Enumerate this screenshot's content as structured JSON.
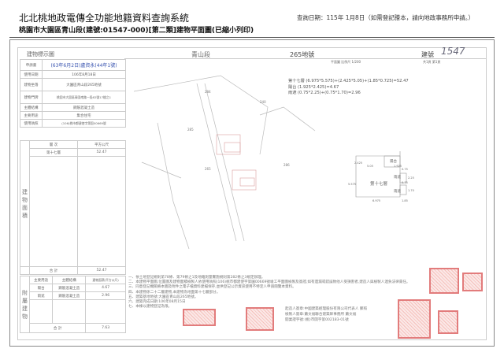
{
  "header": {
    "system_title": "北北桃地政電傳全功能地籍資料查詢系統",
    "subtitle": "桃園市大園區青山段(建號:01547-000)[第二類]建物平面圖(已縮小列印)",
    "query_date": "查詢日期：115年 1月8日（如需登記謄本，請向地政事務所申請。）"
  },
  "sheet": {
    "left_title": "建物標示圖",
    "section": "青山段",
    "lot": "265地號",
    "building_no_label": "建號",
    "building_no_hand": "1547",
    "scale": "平面圖 比例尺 1/200",
    "page": "共1頁 第1頁",
    "parcels": [
      "284",
      "285",
      "286",
      "240",
      "265"
    ]
  },
  "info": {
    "rows": [
      [
        "申請書",
        "(63年6月2日)盧資永(44年1號)"
      ],
      [
        "使用日期",
        "106年8月18日"
      ],
      [
        "建物坐落",
        "大園區青山段265地號"
      ],
      [
        "建物門牌",
        "桃園市大園區青園南路一段62號17樓之1"
      ],
      [
        "主體結構",
        "鋼筋混凝土造"
      ],
      [
        "主要用途",
        "集合住宅"
      ],
      [
        "使用執照",
        "(106)桃市都建使字第園00669號"
      ]
    ],
    "floor_header": [
      "層 次",
      "平方公尺"
    ],
    "floors": [
      [
        "第十七層",
        "52.47"
      ]
    ],
    "floor_side": "建物面積",
    "floor_total": [
      "合 計",
      "52.47"
    ],
    "attach_side": "附屬建物",
    "attach_header": [
      "主要用途",
      "主體結構",
      "建物面積(平方公尺)"
    ],
    "attach": [
      [
        "陽台",
        "鋼筋混凝土造",
        "4.67"
      ],
      [
        "雨遮",
        "鋼筋混凝土造",
        "2.96"
      ]
    ],
    "attach_total": [
      "合 計",
      "7.63"
    ]
  },
  "formulas": [
    "第十七層 (6.975*5.575)+(2.425*5.05)+(1.85*0.725)=52.47",
    "陽台 (1.925*2.425)=4.67",
    "雨遮 (0.75*2.25)+(0.75*1.70)=2.96"
  ],
  "plan": {
    "labels": [
      "陽台",
      "第十七層",
      "雨遮",
      "雨遮"
    ],
    "dims": [
      "2.425",
      "5.05",
      "1.925",
      "0.75",
      "5.575",
      "2.25",
      "0.75",
      "1.70",
      "6.975",
      "1.85"
    ]
  },
  "notes": [
    "一、依土地登記規則第78條、第79條之1及地籍測量實施規則第282條之3規定辦理。",
    "二、本建物平面圖,位置圖及建物面積檢製人依使用執照(106)桃市都建使字第園00669號竣工平面圖檢製及簽證,如有遺漏或錯誤致他人受損害者,建造人與檢製人連負法律責任。",
    "三、同意登記機關將本圖及附件之電子檔資料建檔保存,並供登記公示資訊使用不特定人申請閱覽本資料。",
    "四、本建物係二十二層建物,本建物為地面第十七層部分。",
    "五、建築基地地號:大園區青山段265地號。",
    "六、建築完成日期:106年08月15日",
    "七、本棟以建物登記為限。"
  ],
  "signer": [
    "起造人簽章:中國建築經理股份有限公司代表人 鄭照",
    "檢製人簽章:蕭文福聯合建築師事務所 蕭文福",
    "開業證字號:(桃)市開字第002183-01號"
  ]
}
